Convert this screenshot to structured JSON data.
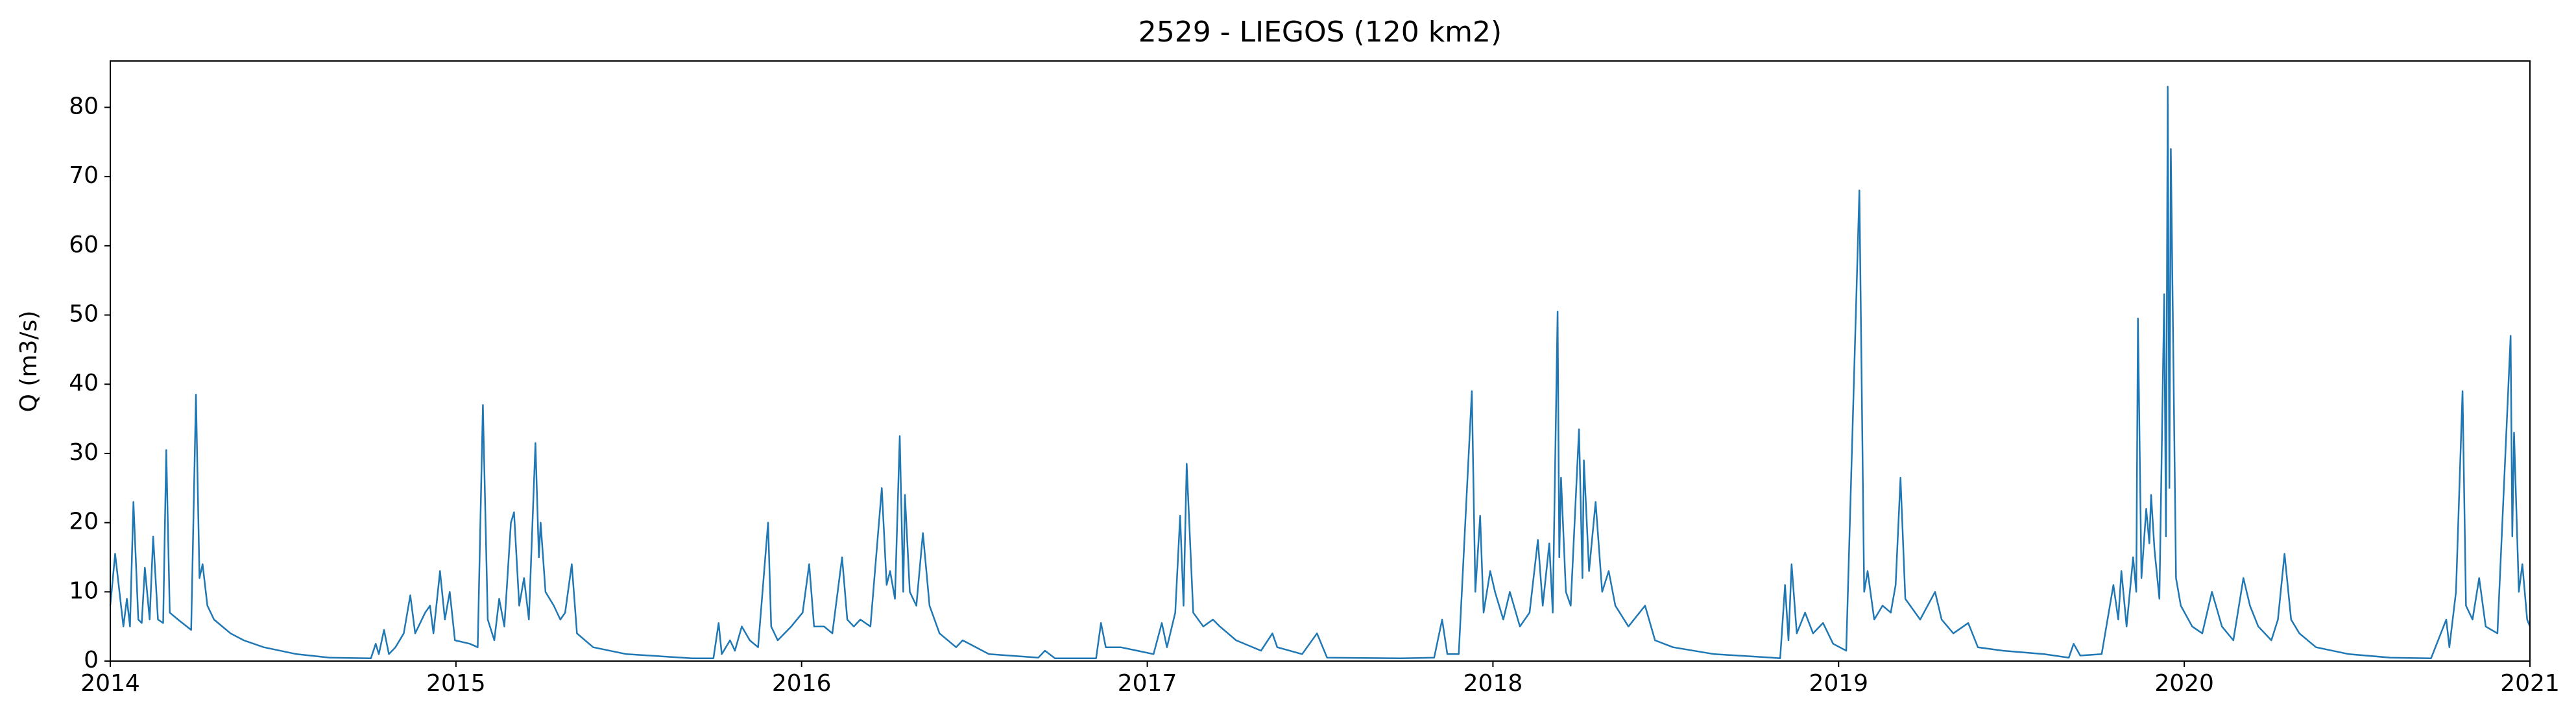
{
  "chart_data": {
    "type": "line",
    "title": "2529 - LIEGOS (120 km2)",
    "y_label": "Q (m3/s)",
    "x": [
      2014.0,
      2014.014,
      2014.038,
      2014.048,
      2014.057,
      2014.067,
      2014.081,
      2014.091,
      2014.1,
      2014.114,
      2014.124,
      2014.138,
      2014.153,
      2014.162,
      2014.172,
      2014.196,
      2014.234,
      2014.248,
      2014.258,
      2014.267,
      2014.281,
      2014.3,
      2014.348,
      2014.386,
      2014.444,
      2014.539,
      2014.634,
      2014.754,
      2014.768,
      2014.777,
      2014.792,
      2014.806,
      2014.825,
      2014.849,
      2014.868,
      2014.882,
      2014.911,
      2014.925,
      2014.935,
      2014.954,
      2014.968,
      2014.982,
      2014.997,
      2015.04,
      2015.063,
      2015.078,
      2015.092,
      2015.111,
      2015.125,
      2015.14,
      2015.159,
      2015.168,
      2015.183,
      2015.197,
      2015.211,
      2015.23,
      2015.24,
      2015.245,
      2015.259,
      2015.283,
      2015.302,
      2015.316,
      2015.335,
      2015.35,
      2015.397,
      2015.493,
      2015.683,
      2015.745,
      2015.76,
      2015.769,
      2015.793,
      2015.807,
      2015.827,
      2015.85,
      2015.874,
      2015.903,
      2015.912,
      2015.931,
      2015.97,
      2016.003,
      2016.022,
      2016.036,
      2016.065,
      2016.089,
      2016.117,
      2016.132,
      2016.151,
      2016.17,
      2016.199,
      2016.232,
      2016.246,
      2016.256,
      2016.27,
      2016.284,
      2016.294,
      2016.299,
      2016.313,
      2016.332,
      2016.351,
      2016.37,
      2016.399,
      2016.447,
      2016.466,
      2016.542,
      2016.685,
      2016.704,
      2016.733,
      2016.852,
      2016.866,
      2016.88,
      2016.923,
      2016.971,
      2017.018,
      2017.042,
      2017.057,
      2017.081,
      2017.095,
      2017.105,
      2017.114,
      2017.133,
      2017.162,
      2017.19,
      2017.21,
      2017.257,
      2017.329,
      2017.362,
      2017.376,
      2017.448,
      2017.491,
      2017.52,
      2017.734,
      2017.83,
      2017.853,
      2017.868,
      2017.901,
      2017.939,
      2017.949,
      2017.963,
      2017.973,
      2017.992,
      2018.006,
      2018.03,
      2018.049,
      2018.078,
      2018.106,
      2018.13,
      2018.144,
      2018.163,
      2018.173,
      2018.187,
      2018.192,
      2018.197,
      2018.211,
      2018.225,
      2018.249,
      2018.259,
      2018.263,
      2018.278,
      2018.297,
      2018.316,
      2018.335,
      2018.354,
      2018.392,
      2018.44,
      2018.469,
      2018.521,
      2018.64,
      2018.807,
      2018.831,
      2018.845,
      2018.855,
      2018.864,
      2018.879,
      2018.903,
      2018.926,
      2018.955,
      2018.984,
      2019.022,
      2019.06,
      2019.074,
      2019.084,
      2019.103,
      2019.127,
      2019.151,
      2019.165,
      2019.179,
      2019.193,
      2019.236,
      2019.279,
      2019.298,
      2019.332,
      2019.375,
      2019.403,
      2019.475,
      2019.594,
      2019.666,
      2019.68,
      2019.699,
      2019.761,
      2019.795,
      2019.809,
      2019.818,
      2019.833,
      2019.852,
      2019.861,
      2019.866,
      2019.876,
      2019.89,
      2019.899,
      2019.904,
      2019.914,
      2019.928,
      2019.942,
      2019.947,
      2019.952,
      2019.957,
      2019.961,
      2019.976,
      2019.99,
      2020.023,
      2020.052,
      2020.08,
      2020.109,
      2020.142,
      2020.171,
      2020.19,
      2020.214,
      2020.252,
      2020.271,
      2020.29,
      2020.309,
      2020.333,
      2020.381,
      2020.476,
      2020.595,
      2020.714,
      2020.758,
      2020.767,
      2020.786,
      2020.805,
      2020.815,
      2020.834,
      2020.853,
      2020.872,
      2020.906,
      2020.944,
      2020.949,
      2020.954,
      2020.968,
      2020.978,
      2020.992,
      2021.0
    ],
    "series": [
      {
        "color": "#1f77b4",
        "values": [
          8,
          15.5,
          5,
          9,
          5,
          23,
          6,
          5.5,
          13.5,
          6,
          18,
          6,
          5.5,
          30.5,
          7,
          6,
          4.5,
          38.5,
          12,
          14,
          8,
          6,
          4,
          3,
          2,
          1,
          0.5,
          0.4,
          2.5,
          1,
          4.5,
          1,
          2,
          4,
          9.5,
          4,
          7,
          8,
          4,
          13,
          6,
          10,
          3,
          2.5,
          2,
          37,
          6,
          3,
          9,
          5,
          20,
          21.5,
          8,
          12,
          6,
          31.5,
          15,
          20,
          10,
          8,
          6,
          7,
          14,
          4,
          2,
          1,
          0.4,
          0.4,
          5.5,
          1,
          3,
          1.5,
          5,
          3,
          2,
          20,
          5,
          3,
          5,
          7,
          14,
          5,
          5,
          4,
          15,
          6,
          5,
          6,
          5,
          25,
          11,
          13,
          9,
          32.5,
          10,
          24,
          10,
          8,
          18.5,
          8,
          4,
          2,
          3,
          1,
          0.5,
          1.5,
          0.4,
          0.4,
          5.5,
          2,
          2,
          1.5,
          1,
          5.5,
          2,
          7,
          21,
          8,
          28.5,
          7,
          5,
          6,
          5,
          3,
          1.5,
          4,
          2,
          1,
          4,
          0.5,
          0.4,
          0.5,
          6,
          1,
          1,
          39,
          10,
          21,
          7,
          13,
          10,
          6,
          10,
          5,
          7,
          17.5,
          8,
          17,
          7,
          50.5,
          15,
          26.5,
          10,
          8,
          33.5,
          12,
          29,
          13,
          23,
          10,
          13,
          8,
          5,
          8,
          3,
          2,
          1,
          0.5,
          0.4,
          11,
          3,
          14,
          4,
          7,
          4,
          5.5,
          2.5,
          1.5,
          68,
          10,
          13,
          6,
          8,
          7,
          11,
          26.5,
          9,
          6,
          10,
          6,
          4,
          5.5,
          2,
          1.5,
          1,
          0.5,
          2.5,
          0.8,
          1,
          11,
          6,
          13,
          5,
          15,
          10,
          49.5,
          12,
          22,
          17,
          24,
          16,
          9,
          53,
          18,
          83,
          25,
          74,
          12,
          8,
          5,
          4,
          10,
          5,
          3,
          12,
          8,
          5,
          3,
          6,
          15.5,
          6,
          4,
          2,
          1,
          0.5,
          0.4,
          6,
          2,
          10,
          39,
          8,
          6,
          12,
          5,
          4,
          47,
          18,
          33,
          10,
          14,
          6,
          5
        ]
      }
    ],
    "xlim": [
      2014,
      2021
    ],
    "xticks": [
      2014,
      2015,
      2016,
      2017,
      2018,
      2019,
      2020,
      2021
    ],
    "ylim": [
      0,
      86.7
    ],
    "yticks": [
      0,
      10,
      20,
      30,
      40,
      50,
      60,
      70,
      80
    ]
  }
}
